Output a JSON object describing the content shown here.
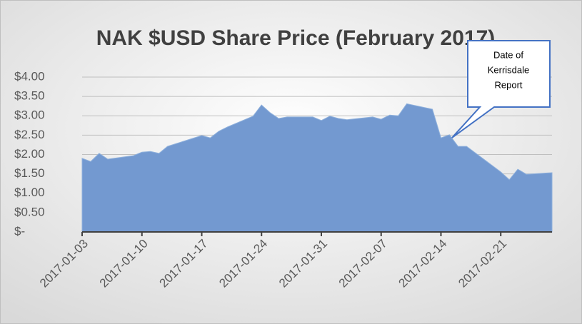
{
  "chart_data": {
    "type": "area",
    "title": "NAK $USD Share Price (February 2017)",
    "x": [
      "2017-01-03",
      "2017-01-04",
      "2017-01-05",
      "2017-01-06",
      "2017-01-09",
      "2017-01-10",
      "2017-01-11",
      "2017-01-12",
      "2017-01-13",
      "2017-01-17",
      "2017-01-18",
      "2017-01-19",
      "2017-01-20",
      "2017-01-23",
      "2017-01-24",
      "2017-01-25",
      "2017-01-26",
      "2017-01-27",
      "2017-01-30",
      "2017-01-31",
      "2017-02-01",
      "2017-02-02",
      "2017-02-03",
      "2017-02-06",
      "2017-02-07",
      "2017-02-08",
      "2017-02-09",
      "2017-02-10",
      "2017-02-13",
      "2017-02-14",
      "2017-02-15",
      "2017-02-16",
      "2017-02-17",
      "2017-02-21",
      "2017-02-22",
      "2017-02-23",
      "2017-02-24",
      "2017-02-27"
    ],
    "values": [
      1.9,
      1.82,
      2.03,
      1.88,
      1.97,
      2.06,
      2.08,
      2.03,
      2.21,
      2.49,
      2.43,
      2.6,
      2.71,
      2.99,
      3.28,
      3.08,
      2.93,
      2.97,
      2.97,
      2.88,
      2.99,
      2.93,
      2.9,
      2.97,
      2.91,
      3.02,
      3.0,
      3.31,
      3.17,
      2.43,
      2.51,
      2.21,
      2.21,
      1.55,
      1.35,
      1.62,
      1.49,
      1.53
    ],
    "color": "#7399d0",
    "xlim": [
      "2017-01-03",
      "2017-02-27"
    ],
    "xticks": [
      "2017-01-03",
      "2017-01-10",
      "2017-01-17",
      "2017-01-24",
      "2017-01-31",
      "2017-02-07",
      "2017-02-14",
      "2017-02-21"
    ],
    "ylim": [
      0,
      4
    ],
    "yticks": [
      {
        "value": 0,
        "label": "$-"
      },
      {
        "value": 0.5,
        "label": "$0.50"
      },
      {
        "value": 1,
        "label": "$1.00"
      },
      {
        "value": 1.5,
        "label": "$1.50"
      },
      {
        "value": 2,
        "label": "$2.00"
      },
      {
        "value": 2.5,
        "label": "$2.50"
      },
      {
        "value": 3,
        "label": "$3.00"
      },
      {
        "value": 3.5,
        "label": "$3.50"
      },
      {
        "value": 4,
        "label": "$4.00"
      }
    ],
    "grid": true,
    "annotation": [
      "Date of",
      "Kerrisdale",
      "Report"
    ]
  }
}
